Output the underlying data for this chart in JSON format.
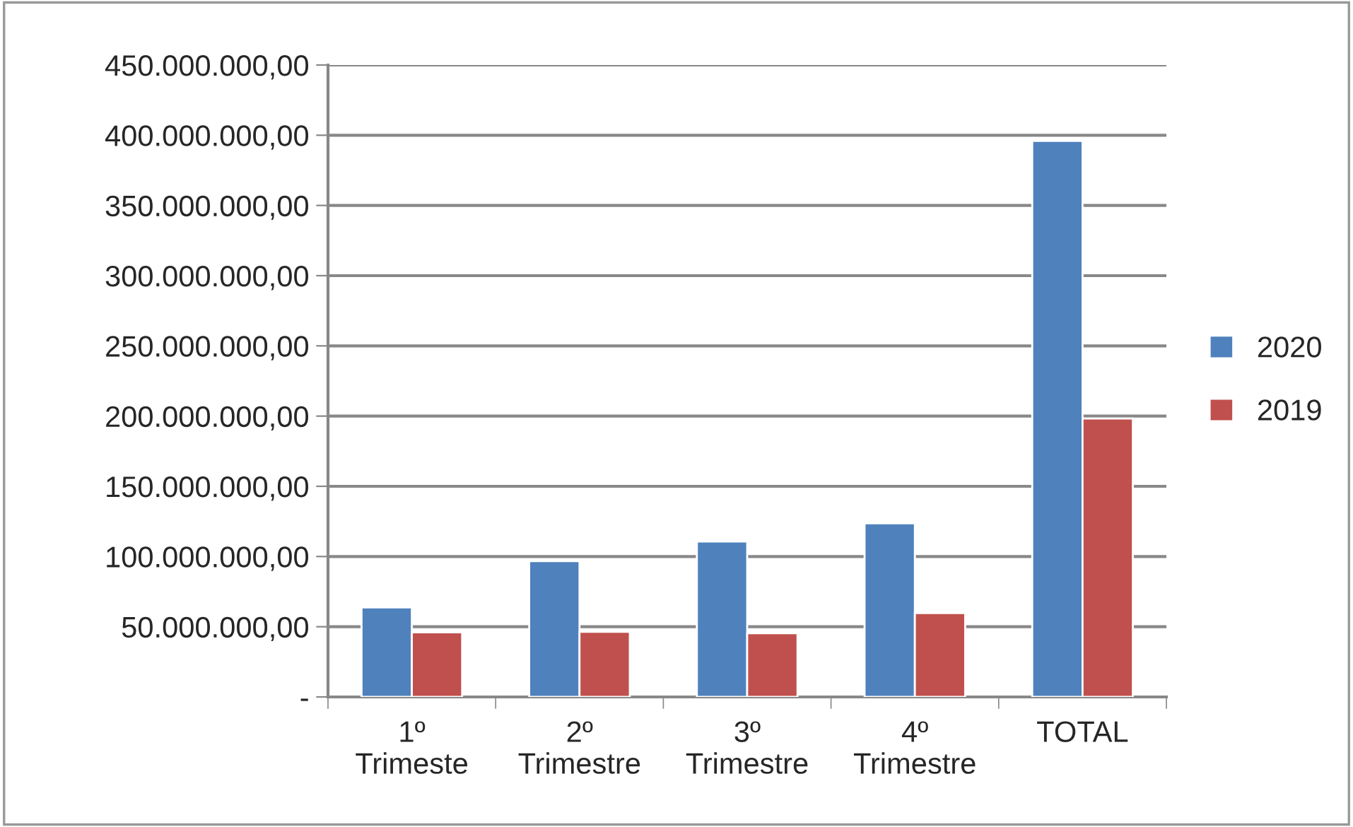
{
  "chart_data": {
    "type": "bar",
    "categories": [
      "1º\nTrimeste",
      "2º\nTrimestre",
      "3º\nTrimestre",
      "4º\nTrimestre",
      "TOTAL"
    ],
    "series": [
      {
        "name": "2020",
        "color": "#4f81bd",
        "values": [
          63700000,
          96700000,
          110700000,
          123700000,
          396000000
        ]
      },
      {
        "name": "2019",
        "color": "#c0504d",
        "values": [
          46000000,
          46400000,
          45400000,
          59700000,
          198300000
        ]
      }
    ],
    "ylim": [
      0,
      450000000
    ],
    "yticks": [
      {
        "value": 0,
        "label": "-"
      },
      {
        "value": 50000000,
        "label": "50.000.000,00"
      },
      {
        "value": 100000000,
        "label": "100.000.000,00"
      },
      {
        "value": 150000000,
        "label": "150.000.000,00"
      },
      {
        "value": 200000000,
        "label": "200.000.000,00"
      },
      {
        "value": 250000000,
        "label": "250.000.000,00"
      },
      {
        "value": 300000000,
        "label": "300.000.000,00"
      },
      {
        "value": 350000000,
        "label": "350.000.000,00"
      },
      {
        "value": 400000000,
        "label": "400.000.000,00"
      },
      {
        "value": 450000000,
        "label": "450.000.000,00"
      }
    ],
    "grid": "y",
    "legend": "right"
  }
}
